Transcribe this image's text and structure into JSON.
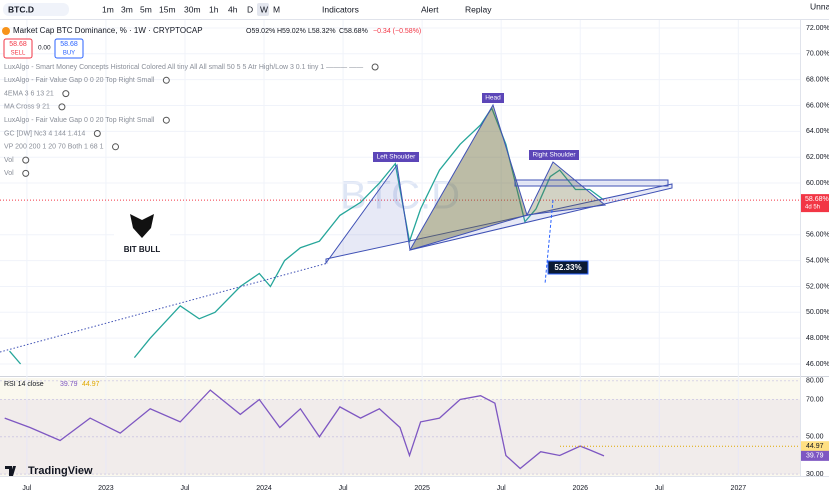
{
  "toolbar": {
    "symbol": "BTC.D",
    "intervals": [
      "1m",
      "3m",
      "5m",
      "15m",
      "30m",
      "1h",
      "4h",
      "D",
      "W",
      "M"
    ],
    "indicators": "Indicators",
    "alert": "Alert",
    "replay": "Replay",
    "account": "Unna"
  },
  "legend": {
    "ohlc": [
      "O59.02%",
      "H59.02%",
      "L58.32%",
      "C58.68%",
      "−0.34 (−0.58%)"
    ],
    "sell_price": "58.68",
    "sell": "SELL",
    "spread": "0.00",
    "buy_price": "58.68",
    "buy": "BUY",
    "indicators": [
      "LuxAlgo - Smart Money Concepts Historical Colored All tiny All All small 50 5 5 Atr High/Low 3 0.1 tiny 1 ——— ——",
      "LuxAlgo - Fair Value Gap 0 0 20 Top Right Small",
      "4EMA 3 6 13 21",
      "MA Cross 9 21",
      "LuxAlgo - Fair Value Gap 0 0 20 Top Right Small",
      "GC [DW] Nc3 4 144 1.414",
      "VP 200 200 1 20 70 Both 1 68 1",
      "Vol",
      "Vol"
    ]
  },
  "annotations": {
    "left_shoulder": "Left Shoulder",
    "head": "Head",
    "right_shoulder": "Right Shoulder",
    "target": "52.33%",
    "watermark": "BTC.D",
    "logo": "BIT BULL",
    "brand": "TradingView",
    "last_price": "58.68%",
    "countdown": "4d 5h"
  },
  "chart_data": [
    {
      "type": "line",
      "title": "Market Cap BTC Dominance, % · 1W · CRYPTOCAP",
      "color": "#26a69a",
      "x": [
        2022.39,
        2022.46,
        2022.8,
        2023.18,
        2023.28,
        2023.47,
        2023.59,
        2023.69,
        2023.85,
        2023.97,
        2024.04,
        2024.13,
        2024.23,
        2024.35,
        2024.48,
        2024.61,
        2024.73,
        2024.83,
        2024.92,
        2024.99,
        2025.11,
        2025.24,
        2025.37,
        2025.44,
        2025.53,
        2025.59,
        2025.65,
        2025.72,
        2025.81,
        2025.87,
        2025.97,
        2026.06,
        2026.15
      ],
      "values": [
        47,
        46,
        null,
        46.5,
        48,
        50.5,
        49.5,
        50,
        52,
        53,
        52,
        54,
        55,
        55.5,
        57.5,
        58.5,
        60,
        61.5,
        55.5,
        58,
        61,
        63,
        64.5,
        65.8,
        63,
        60,
        57,
        58,
        60.5,
        61,
        59.5,
        59.5,
        58.68
      ],
      "xlim": [
        2022.33,
        2027.39
      ],
      "xticks": [
        {
          "value": 2022.5,
          "label": "Jul"
        },
        2023,
        {
          "value": 2023.5,
          "label": "Jul"
        },
        2024,
        {
          "value": 2024.5,
          "label": "Jul"
        },
        2025,
        {
          "value": 2025.5,
          "label": "Jul"
        },
        2026,
        {
          "value": 2026.5,
          "label": "Jul"
        },
        2027
      ],
      "ylim": [
        45.15,
        72.46
      ],
      "yticks": [
        {
          "value": 46,
          "label": "46.00%"
        },
        {
          "value": 48,
          "label": "48.00%"
        },
        {
          "value": 50,
          "label": "50.00%"
        },
        {
          "value": 52,
          "label": "52.00%"
        },
        {
          "value": 54,
          "label": "54.00%"
        },
        {
          "value": 56,
          "label": "56.00%"
        },
        {
          "value": 60,
          "label": "60.00%"
        },
        {
          "value": 62,
          "label": "62.00%"
        },
        {
          "value": 64,
          "label": "64.00%"
        },
        {
          "value": 66,
          "label": "66.00%"
        },
        {
          "value": 68,
          "label": "68.00%"
        },
        {
          "value": 70,
          "label": "70.00%"
        },
        {
          "value": 72,
          "label": "72.00%"
        }
      ]
    },
    {
      "type": "line",
      "title": "RSI 14 close",
      "color": "#7e57c2",
      "ma_value": 44.97,
      "x": [
        2022.36,
        2022.52,
        2022.71,
        2022.9,
        2023.09,
        2023.28,
        2023.47,
        2023.66,
        2023.85,
        2023.97,
        2024.1,
        2024.23,
        2024.35,
        2024.48,
        2024.61,
        2024.73,
        2024.86,
        2024.92,
        2024.99,
        2025.11,
        2025.24,
        2025.37,
        2025.46,
        2025.53,
        2025.62,
        2025.75,
        2025.87,
        2026,
        2026.06,
        2026.15
      ],
      "values": [
        60,
        55,
        48,
        60,
        52,
        65,
        58,
        75,
        62,
        70,
        55,
        65,
        50,
        66,
        60,
        65,
        55,
        40,
        58,
        60,
        70,
        72,
        68,
        40,
        33,
        42,
        40,
        45,
        43,
        39.79
      ],
      "ylim": [
        29,
        81.5
      ],
      "yticks": [
        {
          "value": 30,
          "label": "30.00"
        },
        {
          "value": 50,
          "label": "50.00"
        },
        {
          "value": 70,
          "label": "70.00"
        },
        {
          "value": 80,
          "label": "80.00"
        }
      ]
    }
  ]
}
